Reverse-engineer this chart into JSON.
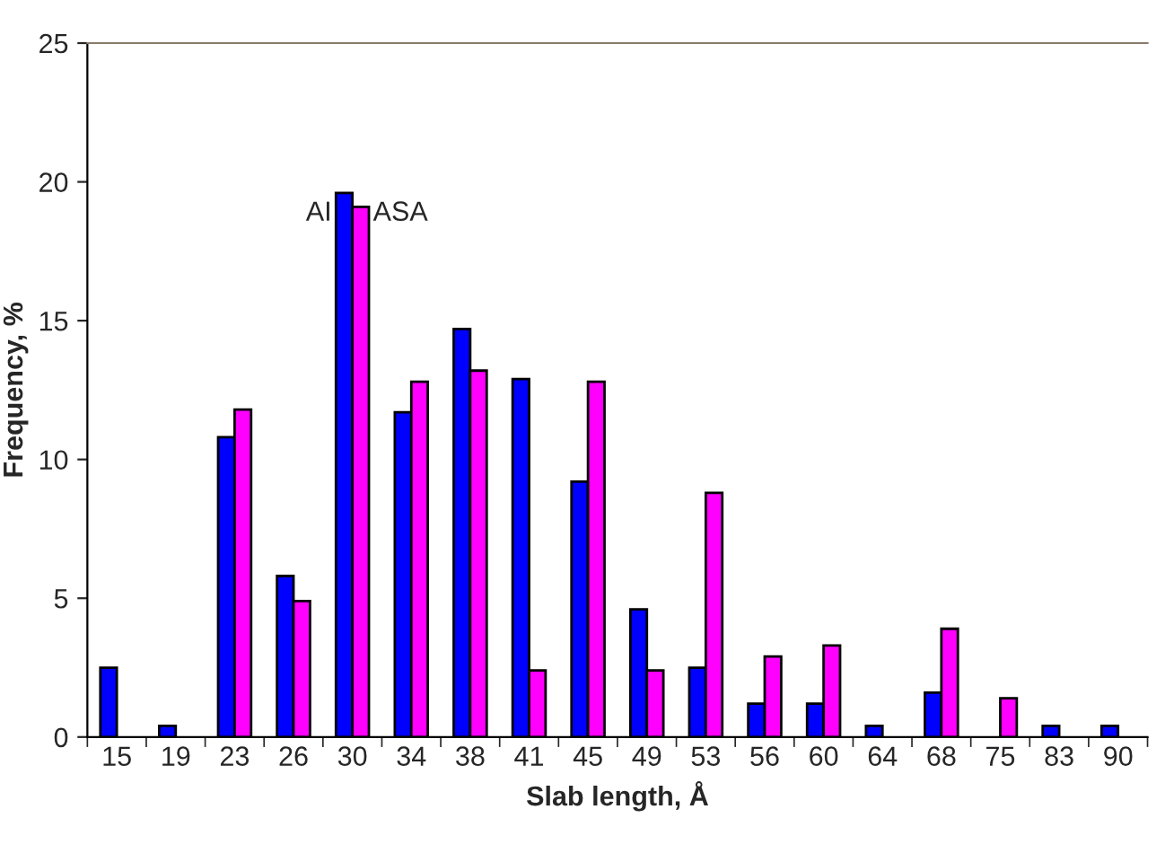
{
  "chart_data": {
    "type": "bar",
    "xlabel": "Slab length, Å",
    "ylabel": "Frequency, %",
    "categories": [
      "15",
      "19",
      "23",
      "26",
      "30",
      "34",
      "38",
      "41",
      "45",
      "49",
      "53",
      "56",
      "60",
      "64",
      "68",
      "75",
      "83",
      "90"
    ],
    "series": [
      {
        "name": "AI",
        "color": "#0000ff",
        "values": [
          2.5,
          0.4,
          10.8,
          5.8,
          19.6,
          11.7,
          14.7,
          12.9,
          9.2,
          4.6,
          2.5,
          1.2,
          1.2,
          0.4,
          1.6,
          0,
          0.4,
          0.4
        ]
      },
      {
        "name": "ASA",
        "color": "#ff00ff",
        "values": [
          0,
          0,
          11.8,
          4.9,
          19.1,
          12.8,
          13.2,
          2.4,
          12.8,
          2.4,
          8.8,
          2.9,
          3.3,
          0,
          3.9,
          1.4,
          0,
          0
        ]
      }
    ],
    "ylim": [
      0,
      25
    ],
    "yticks": [
      0,
      5,
      10,
      15,
      20,
      25
    ],
    "grid": false,
    "legend": false
  }
}
